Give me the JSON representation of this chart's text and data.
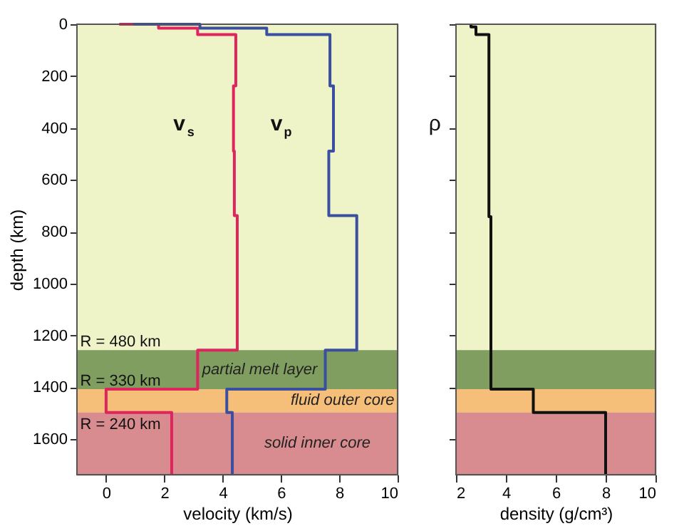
{
  "chart_data": [
    {
      "type": "line",
      "xlabel": "velocity (km/s)",
      "ylabel": "depth (km)",
      "xlim": [
        -1,
        10
      ],
      "xticks": [
        0,
        2,
        4,
        6,
        8,
        10
      ],
      "ylim": [
        1737,
        0
      ],
      "yticks": [
        0,
        200,
        400,
        600,
        800,
        1000,
        1200,
        1400,
        1600
      ],
      "marker": "none",
      "line_style": "solid",
      "series": [
        {
          "name": "v$_{s}$",
          "color": "#e0245e",
          "x": [
            0.45,
            1.8,
            1.8,
            3.14,
            3.14,
            4.45,
            4.45,
            4.37,
            4.37,
            4.4,
            4.4,
            4.5,
            4.5,
            3.14,
            3.14,
            0,
            0,
            2.25,
            2.25
          ],
          "values": [
            0,
            0,
            15,
            15,
            40,
            40,
            238,
            238,
            489,
            489,
            738,
            738,
            1257,
            1257,
            1407,
            1407,
            1497,
            1497,
            1737
          ]
        },
        {
          "name": "v$_{p}$",
          "color": "#3b4fa0",
          "x": [
            0.93,
            3.22,
            3.22,
            5.51,
            5.51,
            7.68,
            7.68,
            7.8,
            7.8,
            7.64,
            7.64,
            8.6,
            8.6,
            7.52,
            7.52,
            4.14,
            4.14,
            4.33,
            4.33
          ],
          "values": [
            0,
            0,
            15,
            15,
            40,
            40,
            238,
            238,
            489,
            489,
            738,
            738,
            1257,
            1257,
            1407,
            1407,
            1497,
            1497,
            1737
          ]
        }
      ],
      "bands": [
        {
          "axis": "y",
          "from": 1257,
          "to": 1407,
          "label": "partial melt layer",
          "color": "#7f9e60"
        },
        {
          "axis": "y",
          "from": 1407,
          "to": 1497,
          "label": "fluid outer core",
          "color": "#f5bf7a"
        },
        {
          "axis": "y",
          "from": 1497,
          "to": 1737,
          "label": "solid inner core",
          "color": "#d98c8f"
        }
      ],
      "annotations": [
        "R = 480 km",
        "R = 330 km",
        "R = 240 km"
      ]
    },
    {
      "type": "line",
      "xlabel": "density (g/cm³)",
      "xlim": [
        2,
        10
      ],
      "xticks": [
        2,
        4,
        6,
        8,
        10
      ],
      "ylim": [
        1737,
        0
      ],
      "yticks": [
        0,
        200,
        400,
        600,
        800,
        1000,
        1200,
        1400,
        1600
      ],
      "tick_labels": "x",
      "marker": "none",
      "line_style": "solid",
      "series": [
        {
          "name": "ρ",
          "color": "#111111",
          "x": [
            2.6,
            2.6,
            2.8,
            2.8,
            3.32,
            3.32,
            3.4,
            3.4,
            5.1,
            5.1,
            8.0,
            8.0
          ],
          "values": [
            0,
            10,
            10,
            40,
            40,
            742,
            742,
            1407,
            1407,
            1497,
            1497,
            1737
          ]
        }
      ],
      "bands": [
        {
          "axis": "y",
          "from": 1257,
          "to": 1407,
          "color": "#7f9e60"
        },
        {
          "axis": "y",
          "from": 1407,
          "to": 1497,
          "color": "#f5bf7a"
        },
        {
          "axis": "y",
          "from": 1497,
          "to": 1737,
          "color": "#d98c8f"
        }
      ]
    }
  ]
}
